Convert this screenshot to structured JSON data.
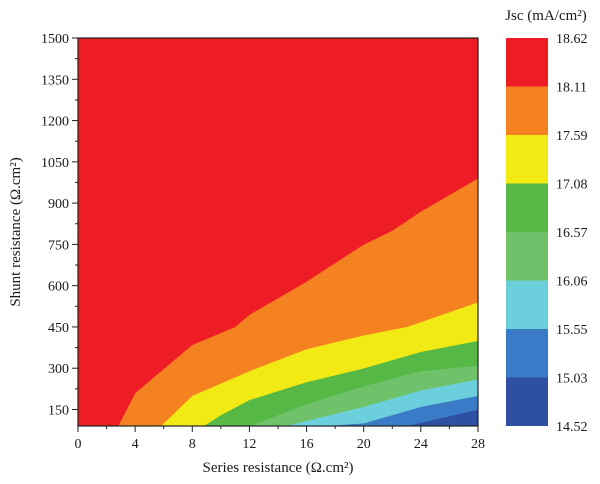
{
  "chart_data": {
    "type": "heatmap",
    "subtype": "filled-contour",
    "xlabel": "Series resistance (Ω.cm²)",
    "ylabel": "Shunt resistance (Ω.cm²)",
    "colorbar_title": "Jsc (mA/cm²)",
    "xlim": [
      0,
      28
    ],
    "ylim": [
      90,
      1500
    ],
    "x_ticks": [
      0,
      4,
      8,
      12,
      16,
      20,
      24,
      28
    ],
    "y_ticks": [
      150,
      300,
      450,
      600,
      750,
      900,
      1050,
      1200,
      1350,
      1500
    ],
    "colorbar_levels": [
      14.52,
      15.03,
      15.55,
      16.06,
      16.57,
      17.08,
      17.59,
      18.11,
      18.62
    ],
    "band_colors": [
      "#2f4fa2",
      "#3a7bc8",
      "#6cd0dc",
      "#6fc26a",
      "#56b845",
      "#f2ea14",
      "#f58220",
      "#ee1c25"
    ],
    "contour_boundaries": [
      {
        "level": 18.11,
        "points": [
          [
            2.8,
            90
          ],
          [
            4,
            210
          ],
          [
            8,
            385
          ],
          [
            11,
            450
          ],
          [
            12,
            495
          ],
          [
            16,
            615
          ],
          [
            20,
            750
          ],
          [
            22,
            800
          ],
          [
            24,
            870
          ],
          [
            28,
            990
          ]
        ]
      },
      {
        "level": 17.59,
        "points": [
          [
            5.8,
            90
          ],
          [
            8,
            200
          ],
          [
            12,
            290
          ],
          [
            16,
            370
          ],
          [
            20,
            420
          ],
          [
            23,
            450
          ],
          [
            28,
            540
          ]
        ]
      },
      {
        "level": 17.08,
        "points": [
          [
            8.8,
            90
          ],
          [
            10,
            130
          ],
          [
            12,
            185
          ],
          [
            16,
            250
          ],
          [
            20,
            300
          ],
          [
            24,
            360
          ],
          [
            28,
            400
          ]
        ]
      },
      {
        "level": 16.57,
        "points": [
          [
            12,
            90
          ],
          [
            16,
            170
          ],
          [
            20,
            235
          ],
          [
            24,
            290
          ],
          [
            28,
            310
          ]
        ]
      },
      {
        "level": 16.06,
        "points": [
          [
            14.5,
            90
          ],
          [
            20,
            160
          ],
          [
            24,
            220
          ],
          [
            28,
            260
          ]
        ]
      },
      {
        "level": 15.55,
        "points": [
          [
            17,
            90
          ],
          [
            20,
            100
          ],
          [
            24,
            160
          ],
          [
            28,
            200
          ]
        ]
      },
      {
        "level": 15.03,
        "points": [
          [
            23,
            90
          ],
          [
            28,
            150
          ]
        ]
      }
    ]
  }
}
